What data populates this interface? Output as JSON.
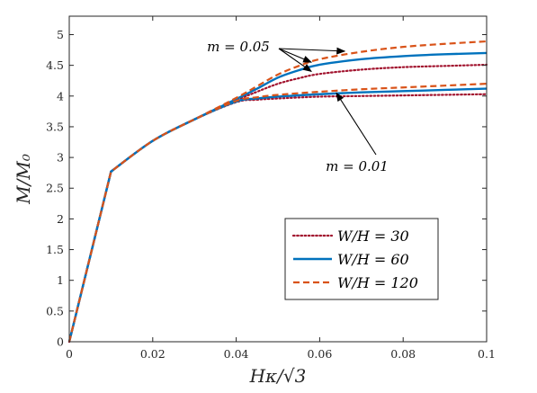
{
  "chart_data": {
    "type": "line",
    "xlabel": "Hκ/√3",
    "ylabel": "M/M₀",
    "xlim": [
      0,
      0.1
    ],
    "ylim": [
      0,
      5.3
    ],
    "xticks": [
      "0",
      "0.02",
      "0.04",
      "0.06",
      "0.08",
      "0.1"
    ],
    "yticks": [
      "0",
      "0.5",
      "1",
      "1.5",
      "2",
      "2.5",
      "3",
      "3.5",
      "4",
      "4.5",
      "5"
    ],
    "grid": false,
    "legend_position": "lower-right",
    "annotations": [
      {
        "text": "m = 0.05",
        "points_to": [
          [
            0.066,
            4.73
          ],
          [
            0.058,
            4.55
          ],
          [
            0.058,
            4.4
          ]
        ]
      },
      {
        "text": "m = 0.01",
        "points_to": [
          [
            0.064,
            4.05
          ]
        ]
      }
    ],
    "series": [
      {
        "name": "W/H = 30",
        "color": "#a2142f",
        "style": "dotted",
        "group": "m = 0.05",
        "x": [
          0,
          0.01,
          0.02,
          0.03,
          0.04,
          0.045,
          0.05,
          0.055,
          0.06,
          0.07,
          0.08,
          0.09,
          0.1
        ],
        "y": [
          0,
          2.77,
          3.27,
          3.62,
          3.93,
          4.07,
          4.2,
          4.29,
          4.36,
          4.43,
          4.47,
          4.49,
          4.51
        ]
      },
      {
        "name": "W/H = 60",
        "color": "#0072bd",
        "style": "solid",
        "group": "m = 0.05",
        "x": [
          0,
          0.01,
          0.02,
          0.03,
          0.04,
          0.045,
          0.05,
          0.055,
          0.06,
          0.07,
          0.08,
          0.09,
          0.1
        ],
        "y": [
          0,
          2.77,
          3.27,
          3.62,
          3.95,
          4.12,
          4.3,
          4.42,
          4.51,
          4.6,
          4.65,
          4.68,
          4.7
        ]
      },
      {
        "name": "W/H = 120",
        "color": "#d95319",
        "style": "dashed",
        "group": "m = 0.05",
        "x": [
          0,
          0.01,
          0.02,
          0.03,
          0.04,
          0.045,
          0.05,
          0.055,
          0.06,
          0.07,
          0.08,
          0.09,
          0.1
        ],
        "y": [
          0,
          2.77,
          3.27,
          3.62,
          3.97,
          4.16,
          4.35,
          4.49,
          4.6,
          4.72,
          4.8,
          4.85,
          4.89
        ]
      },
      {
        "name": "W/H = 30",
        "color": "#a2142f",
        "style": "dotted",
        "group": "m = 0.01",
        "x": [
          0,
          0.01,
          0.02,
          0.03,
          0.04,
          0.045,
          0.05,
          0.06,
          0.07,
          0.08,
          0.09,
          0.1
        ],
        "y": [
          0,
          2.77,
          3.27,
          3.62,
          3.9,
          3.94,
          3.96,
          3.99,
          4.0,
          4.01,
          4.02,
          4.03
        ]
      },
      {
        "name": "W/H = 60",
        "color": "#0072bd",
        "style": "solid",
        "group": "m = 0.01",
        "x": [
          0,
          0.01,
          0.02,
          0.03,
          0.04,
          0.045,
          0.05,
          0.06,
          0.07,
          0.08,
          0.09,
          0.1
        ],
        "y": [
          0,
          2.77,
          3.27,
          3.62,
          3.91,
          3.96,
          3.99,
          4.03,
          4.06,
          4.08,
          4.1,
          4.12
        ]
      },
      {
        "name": "W/H = 120",
        "color": "#d95319",
        "style": "dashed",
        "group": "m = 0.01",
        "x": [
          0,
          0.01,
          0.02,
          0.03,
          0.04,
          0.045,
          0.05,
          0.06,
          0.07,
          0.08,
          0.09,
          0.1
        ],
        "y": [
          0,
          2.77,
          3.27,
          3.62,
          3.92,
          3.98,
          4.02,
          4.07,
          4.11,
          4.14,
          4.17,
          4.2
        ]
      }
    ],
    "legend": [
      {
        "label": "W/H = 30",
        "color": "#a2142f",
        "style": "dotted"
      },
      {
        "label": "W/H = 60",
        "color": "#0072bd",
        "style": "solid"
      },
      {
        "label": "W/H = 120",
        "color": "#d95319",
        "style": "dashed"
      }
    ]
  }
}
